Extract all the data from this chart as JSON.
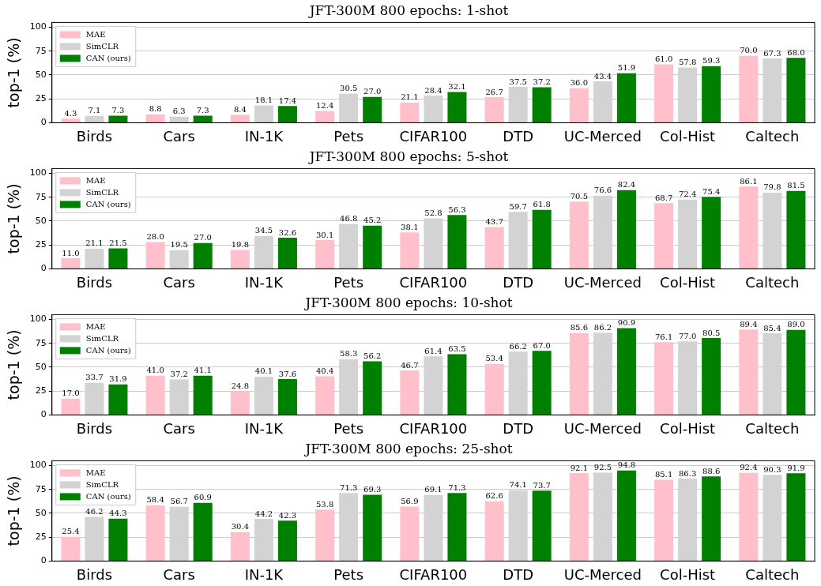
{
  "chart_data": [
    {
      "type": "bar",
      "title": "JFT-300M 800 epochs: 1-shot",
      "ylabel": "top-1 (%)",
      "categories": [
        "Birds",
        "Cars",
        "IN-1K",
        "Pets",
        "CIFAR100",
        "DTD",
        "UC-Merced",
        "Col-Hist",
        "Caltech"
      ],
      "ylim": [
        0,
        105
      ],
      "yticks": [
        0,
        25,
        50,
        75,
        100
      ],
      "grid": "y",
      "legend": "top left",
      "series": [
        {
          "name": "MAE",
          "color": "#ffc0cb",
          "values": [
            4.3,
            8.8,
            8.4,
            12.4,
            21.1,
            26.7,
            36.0,
            61.0,
            70.0
          ],
          "value_labels": [
            "4.3",
            "8.8",
            "8.4",
            "12.4",
            "21.1",
            "26.7",
            "36.0",
            "61.0",
            "70.0"
          ]
        },
        {
          "name": "SimCLR",
          "color": "#d3d3d3",
          "values": [
            7.1,
            6.3,
            18.1,
            30.5,
            28.4,
            37.5,
            43.4,
            57.8,
            67.3
          ],
          "value_labels": [
            "7.1",
            "6.3",
            "18.1",
            "30.5",
            "28.4",
            "37.5",
            "43.4",
            "57.8",
            "67.3"
          ]
        },
        {
          "name": "CAN (ours)",
          "color": "#008000",
          "values": [
            7.3,
            7.3,
            17.4,
            27.0,
            32.1,
            37.2,
            51.9,
            59.3,
            68.0
          ],
          "value_labels": [
            "7.3",
            "7.3",
            "17.4",
            "27.0",
            "32.1",
            "37.2",
            "51.9",
            "59.3",
            "68.0"
          ]
        }
      ]
    },
    {
      "type": "bar",
      "title": "JFT-300M 800 epochs: 5-shot",
      "ylabel": "top-1 (%)",
      "categories": [
        "Birds",
        "Cars",
        "IN-1K",
        "Pets",
        "CIFAR100",
        "DTD",
        "UC-Merced",
        "Col-Hist",
        "Caltech"
      ],
      "ylim": [
        0,
        105
      ],
      "yticks": [
        0,
        25,
        50,
        75,
        100
      ],
      "grid": "y",
      "legend": "top left",
      "series": [
        {
          "name": "MAE",
          "color": "#ffc0cb",
          "values": [
            11.0,
            28.0,
            19.8,
            30.1,
            38.1,
            43.7,
            70.5,
            68.7,
            86.1
          ],
          "value_labels": [
            "11.0",
            "28.0",
            "19.8",
            "30.1",
            "38.1",
            "43.7",
            "70.5",
            "68.7",
            "86.1"
          ]
        },
        {
          "name": "SimCLR",
          "color": "#d3d3d3",
          "values": [
            21.1,
            19.5,
            34.5,
            46.8,
            52.8,
            59.7,
            76.6,
            72.4,
            79.8
          ],
          "value_labels": [
            "21.1",
            "19.5",
            "34.5",
            "46.8",
            "52.8",
            "59.7",
            "76.6",
            "72.4",
            "79.8"
          ]
        },
        {
          "name": "CAN (ours)",
          "color": "#008000",
          "values": [
            21.5,
            27.0,
            32.6,
            45.2,
            56.3,
            61.8,
            82.4,
            75.4,
            81.5
          ],
          "value_labels": [
            "21.5",
            "27.0",
            "32.6",
            "45.2",
            "56.3",
            "61.8",
            "82.4",
            "75.4",
            "81.5"
          ]
        }
      ]
    },
    {
      "type": "bar",
      "title": "JFT-300M 800 epochs: 10-shot",
      "ylabel": "top-1 (%)",
      "categories": [
        "Birds",
        "Cars",
        "IN-1K",
        "Pets",
        "CIFAR100",
        "DTD",
        "UC-Merced",
        "Col-Hist",
        "Caltech"
      ],
      "ylim": [
        0,
        105
      ],
      "yticks": [
        0,
        25,
        50,
        75,
        100
      ],
      "grid": "y",
      "legend": "top left",
      "series": [
        {
          "name": "MAE",
          "color": "#ffc0cb",
          "values": [
            17.0,
            41.0,
            24.8,
            40.4,
            46.7,
            53.4,
            85.6,
            76.1,
            89.4
          ],
          "value_labels": [
            "17.0",
            "41.0",
            "24.8",
            "40.4",
            "46.7",
            "53.4",
            "85.6",
            "76.1",
            "89.4"
          ]
        },
        {
          "name": "SimCLR",
          "color": "#d3d3d3",
          "values": [
            33.7,
            37.2,
            40.1,
            58.3,
            61.4,
            66.2,
            86.2,
            77.0,
            85.4
          ],
          "value_labels": [
            "33.7",
            "37.2",
            "40.1",
            "58.3",
            "61.4",
            "66.2",
            "86.2",
            "77.0",
            "85.4"
          ]
        },
        {
          "name": "CAN (ours)",
          "color": "#008000",
          "values": [
            31.9,
            41.1,
            37.6,
            56.2,
            63.5,
            67.0,
            90.9,
            80.5,
            89.0
          ],
          "value_labels": [
            "31.9",
            "41.1",
            "37.6",
            "56.2",
            "63.5",
            "67.0",
            "90.9",
            "80.5",
            "89.0"
          ]
        }
      ]
    },
    {
      "type": "bar",
      "title": "JFT-300M 800 epochs: 25-shot",
      "ylabel": "top-1 (%)",
      "categories": [
        "Birds",
        "Cars",
        "IN-1K",
        "Pets",
        "CIFAR100",
        "DTD",
        "UC-Merced",
        "Col-Hist",
        "Caltech"
      ],
      "ylim": [
        0,
        105
      ],
      "yticks": [
        0,
        25,
        50,
        75,
        100
      ],
      "grid": "y",
      "legend": "top left",
      "series": [
        {
          "name": "MAE",
          "color": "#ffc0cb",
          "values": [
            25.4,
            58.4,
            30.4,
            53.8,
            56.9,
            62.6,
            92.1,
            85.1,
            92.4
          ],
          "value_labels": [
            "25.4",
            "58.4",
            "30.4",
            "53.8",
            "56.9",
            "62.6",
            "92.1",
            "85.1",
            "92.4"
          ]
        },
        {
          "name": "SimCLR",
          "color": "#d3d3d3",
          "values": [
            46.2,
            56.7,
            44.2,
            71.3,
            69.1,
            74.1,
            92.5,
            86.3,
            90.3
          ],
          "value_labels": [
            "46.2",
            "56.7",
            "44.2",
            "71.3",
            "69.1",
            "74.1",
            "92.5",
            "86.3",
            "90.3"
          ]
        },
        {
          "name": "CAN (ours)",
          "color": "#008000",
          "values": [
            44.3,
            60.9,
            42.3,
            69.3,
            71.3,
            73.7,
            94.8,
            88.6,
            91.9
          ],
          "value_labels": [
            "44.3",
            "60.9",
            "42.3",
            "69.3",
            "71.3",
            "73.7",
            "94.8",
            "88.6",
            "91.9"
          ]
        }
      ]
    }
  ]
}
